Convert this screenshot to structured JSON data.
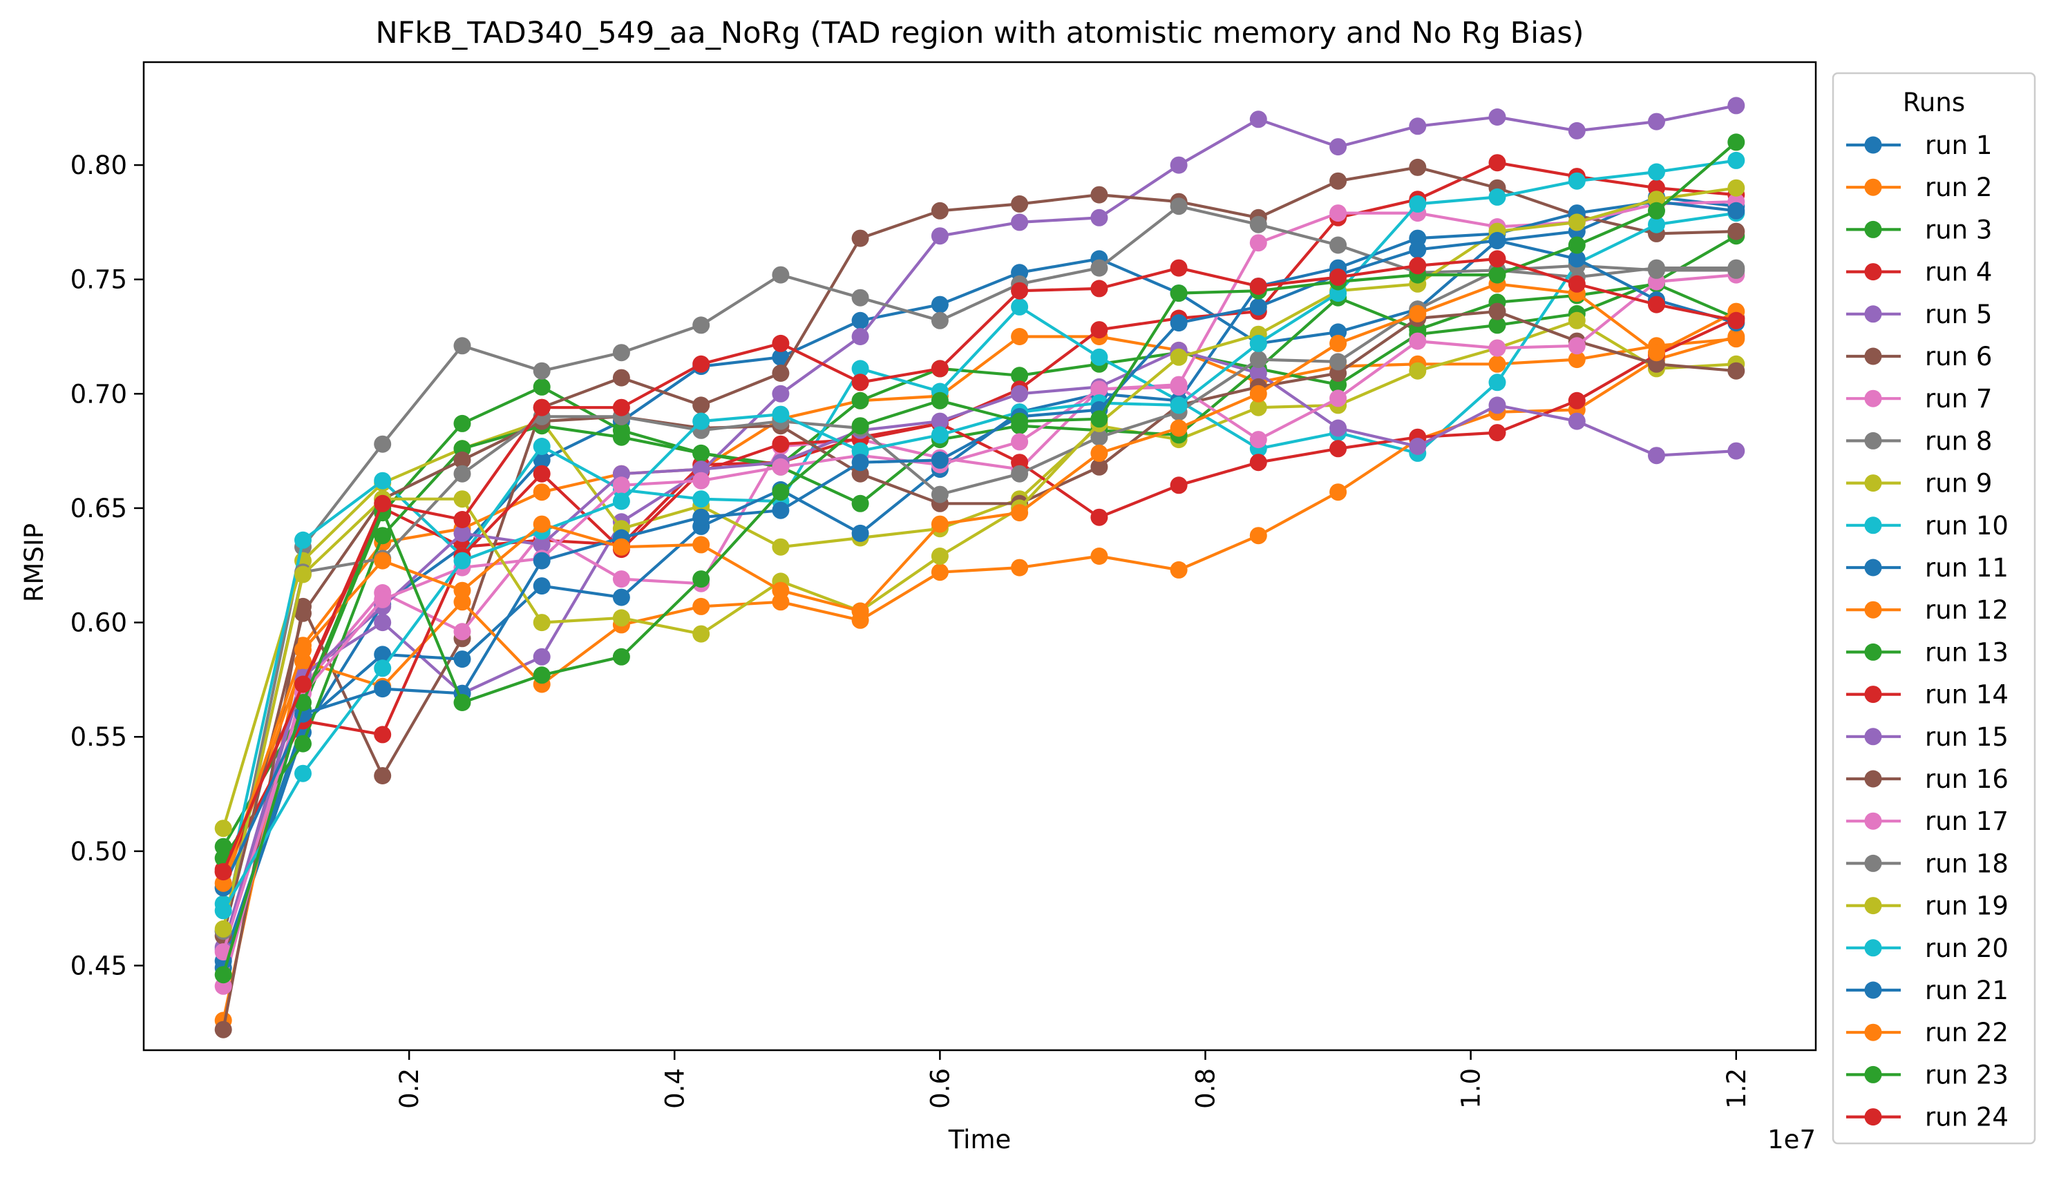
{
  "chart_data": {
    "type": "line",
    "title": "NFkB_TAD340_549_aa_NoRg (TAD region with atomistic memory and No Rg Bias)",
    "xlabel": "Time",
    "ylabel": "RMSIP",
    "x_offset_label": "1e7",
    "xlim": [
      0.0,
      12600000.0
    ],
    "ylim": [
      0.413,
      0.845
    ],
    "x_ticks": [
      2000000,
      4000000,
      6000000,
      8000000,
      10000000,
      12000000
    ],
    "x_tick_labels": [
      "0.2",
      "0.4",
      "0.6",
      "0.8",
      "1.0",
      "1.2"
    ],
    "y_ticks": [
      0.45,
      0.5,
      0.55,
      0.6,
      0.65,
      0.7,
      0.75,
      0.8
    ],
    "y_tick_labels": [
      "0.45",
      "0.50",
      "0.55",
      "0.60",
      "0.65",
      "0.70",
      "0.75",
      "0.80"
    ],
    "grid": false,
    "legend_title": "Runs",
    "legend_position": "outside-right",
    "x": [
      600000,
      1200000,
      1800000,
      2400000,
      3000000,
      3600000,
      4200000,
      4800000,
      5400000,
      6000000,
      6600000,
      7200000,
      7800000,
      8400000,
      9000000,
      9600000,
      10200000,
      10800000,
      11400000,
      12000000
    ],
    "series": [
      {
        "name": "run 1",
        "color": "#1f77b4",
        "values": [
          0.449,
          0.552,
          0.608,
          0.633,
          0.671,
          0.688,
          0.712,
          0.716,
          0.732,
          0.739,
          0.753,
          0.759,
          0.744,
          0.722,
          0.727,
          0.737,
          0.767,
          0.771,
          0.786,
          0.782
        ]
      },
      {
        "name": "run 2",
        "color": "#ff7f0e",
        "values": [
          0.426,
          0.59,
          0.635,
          0.641,
          0.657,
          0.665,
          0.667,
          0.689,
          0.697,
          0.699,
          0.725,
          0.725,
          0.719,
          0.705,
          0.712,
          0.713,
          0.713,
          0.715,
          0.721,
          0.724
        ]
      },
      {
        "name": "run 3",
        "color": "#2ca02c",
        "values": [
          0.502,
          0.562,
          0.648,
          0.687,
          0.703,
          0.684,
          0.674,
          0.669,
          0.697,
          0.711,
          0.708,
          0.713,
          0.718,
          0.711,
          0.704,
          0.726,
          0.73,
          0.735,
          0.749,
          0.769
        ]
      },
      {
        "name": "run 4",
        "color": "#d62728",
        "values": [
          0.492,
          0.572,
          0.65,
          0.633,
          0.636,
          0.634,
          0.669,
          0.67,
          0.681,
          0.687,
          0.702,
          0.728,
          0.733,
          0.736,
          0.777,
          0.785,
          0.801,
          0.795,
          0.79,
          0.787
        ]
      },
      {
        "name": "run 5",
        "color": "#9467bd",
        "values": [
          0.458,
          0.578,
          0.6,
          0.569,
          0.585,
          0.644,
          0.666,
          0.7,
          0.725,
          0.769,
          0.775,
          0.777,
          0.8,
          0.82,
          0.808,
          0.817,
          0.821,
          0.815,
          0.819,
          0.826
        ]
      },
      {
        "name": "run 6",
        "color": "#8c564b",
        "values": [
          0.422,
          0.607,
          0.533,
          0.593,
          0.694,
          0.707,
          0.695,
          0.709,
          0.768,
          0.78,
          0.783,
          0.787,
          0.784,
          0.777,
          0.793,
          0.799,
          0.79,
          0.778,
          0.77,
          0.771
        ]
      },
      {
        "name": "run 7",
        "color": "#e377c2",
        "values": [
          0.441,
          0.572,
          0.613,
          0.596,
          0.639,
          0.619,
          0.617,
          0.677,
          0.68,
          0.672,
          0.667,
          0.702,
          0.704,
          0.766,
          0.779,
          0.779,
          0.773,
          0.775,
          0.783,
          0.784
        ]
      },
      {
        "name": "run 8",
        "color": "#7f7f7f",
        "values": [
          0.465,
          0.633,
          0.678,
          0.721,
          0.71,
          0.718,
          0.73,
          0.752,
          0.742,
          0.732,
          0.748,
          0.755,
          0.782,
          0.774,
          0.765,
          0.753,
          0.754,
          0.751,
          0.755,
          0.755
        ]
      },
      {
        "name": "run 9",
        "color": "#bcbd22",
        "values": [
          0.51,
          0.627,
          0.661,
          0.676,
          0.688,
          0.641,
          0.651,
          0.633,
          0.637,
          0.641,
          0.654,
          0.686,
          0.68,
          0.694,
          0.695,
          0.71,
          0.72,
          0.732,
          0.711,
          0.713
        ]
      },
      {
        "name": "run 10",
        "color": "#17becf",
        "values": [
          0.477,
          0.636,
          0.662,
          0.629,
          0.677,
          0.658,
          0.654,
          0.653,
          0.711,
          0.701,
          0.738,
          0.716,
          0.697,
          0.676,
          0.683,
          0.674,
          0.705,
          0.757,
          0.774,
          0.779
        ]
      },
      {
        "name": "run 11",
        "color": "#1f77b4",
        "values": [
          0.452,
          0.556,
          0.586,
          0.584,
          0.616,
          0.611,
          0.642,
          0.658,
          0.639,
          0.667,
          0.692,
          0.7,
          0.697,
          0.747,
          0.755,
          0.768,
          0.77,
          0.779,
          0.784,
          0.78
        ]
      },
      {
        "name": "run 12",
        "color": "#ff7f0e",
        "values": [
          0.484,
          0.583,
          0.572,
          0.609,
          0.573,
          0.599,
          0.607,
          0.609,
          0.601,
          0.622,
          0.624,
          0.629,
          0.623,
          0.638,
          0.657,
          0.68,
          0.692,
          0.693,
          0.715,
          0.725
        ]
      },
      {
        "name": "run 13",
        "color": "#2ca02c",
        "values": [
          0.497,
          0.547,
          0.638,
          0.676,
          0.686,
          0.681,
          0.674,
          0.668,
          0.652,
          0.68,
          0.686,
          0.684,
          0.682,
          0.711,
          0.742,
          0.728,
          0.74,
          0.743,
          0.748,
          0.733
        ]
      },
      {
        "name": "run 14",
        "color": "#d62728",
        "values": [
          0.491,
          0.557,
          0.551,
          0.629,
          0.665,
          0.632,
          0.666,
          0.678,
          0.68,
          0.687,
          0.67,
          0.646,
          0.66,
          0.67,
          0.676,
          0.681,
          0.683,
          0.697,
          0.717,
          0.733
        ]
      },
      {
        "name": "run 15",
        "color": "#9467bd",
        "values": [
          0.457,
          0.576,
          0.607,
          0.639,
          0.634,
          0.665,
          0.667,
          0.67,
          0.684,
          0.688,
          0.7,
          0.703,
          0.719,
          0.709,
          0.685,
          0.677,
          0.695,
          0.688,
          0.673,
          0.675
        ]
      },
      {
        "name": "run 16",
        "color": "#8c564b",
        "values": [
          0.463,
          0.604,
          0.654,
          0.671,
          0.688,
          0.69,
          0.685,
          0.686,
          0.665,
          0.652,
          0.652,
          0.668,
          0.695,
          0.703,
          0.709,
          0.733,
          0.736,
          0.723,
          0.713,
          0.71
        ]
      },
      {
        "name": "run 17",
        "color": "#e377c2",
        "values": [
          0.456,
          0.569,
          0.61,
          0.624,
          0.628,
          0.66,
          0.662,
          0.668,
          0.673,
          0.669,
          0.679,
          0.702,
          0.703,
          0.68,
          0.698,
          0.723,
          0.72,
          0.721,
          0.749,
          0.752
        ]
      },
      {
        "name": "run 18",
        "color": "#7f7f7f",
        "values": [
          0.465,
          0.622,
          0.628,
          0.665,
          0.69,
          0.69,
          0.684,
          0.688,
          0.685,
          0.656,
          0.665,
          0.681,
          0.692,
          0.715,
          0.714,
          0.737,
          0.754,
          0.756,
          0.754,
          0.754
        ]
      },
      {
        "name": "run 19",
        "color": "#bcbd22",
        "values": [
          0.466,
          0.621,
          0.654,
          0.654,
          0.6,
          0.602,
          0.595,
          0.618,
          0.605,
          0.629,
          0.65,
          0.687,
          0.716,
          0.726,
          0.745,
          0.748,
          0.771,
          0.775,
          0.785,
          0.79
        ]
      },
      {
        "name": "run 20",
        "color": "#17becf",
        "values": [
          0.474,
          0.534,
          0.58,
          0.627,
          0.64,
          0.653,
          0.688,
          0.691,
          0.675,
          0.682,
          0.692,
          0.696,
          0.695,
          0.722,
          0.744,
          0.783,
          0.786,
          0.793,
          0.797,
          0.802
        ]
      },
      {
        "name": "run 21",
        "color": "#1f77b4",
        "values": [
          0.484,
          0.56,
          0.571,
          0.569,
          0.627,
          0.637,
          0.646,
          0.649,
          0.67,
          0.671,
          0.69,
          0.693,
          0.731,
          0.738,
          0.752,
          0.763,
          0.767,
          0.759,
          0.741,
          0.731
        ]
      },
      {
        "name": "run 22",
        "color": "#ff7f0e",
        "values": [
          0.486,
          0.588,
          0.627,
          0.614,
          0.643,
          0.633,
          0.634,
          0.614,
          0.605,
          0.643,
          0.648,
          0.674,
          0.685,
          0.7,
          0.722,
          0.735,
          0.748,
          0.744,
          0.718,
          0.736
        ]
      },
      {
        "name": "run 23",
        "color": "#2ca02c",
        "values": [
          0.446,
          0.565,
          0.649,
          0.565,
          0.577,
          0.585,
          0.619,
          0.657,
          0.686,
          0.697,
          0.688,
          0.689,
          0.744,
          0.745,
          0.749,
          0.752,
          0.752,
          0.765,
          0.78,
          0.81
        ]
      },
      {
        "name": "run 24",
        "color": "#d62728",
        "values": [
          0.491,
          0.573,
          0.652,
          0.645,
          0.694,
          0.694,
          0.713,
          0.722,
          0.705,
          0.711,
          0.745,
          0.746,
          0.755,
          0.747,
          0.751,
          0.756,
          0.759,
          0.748,
          0.739,
          0.732
        ]
      }
    ]
  }
}
